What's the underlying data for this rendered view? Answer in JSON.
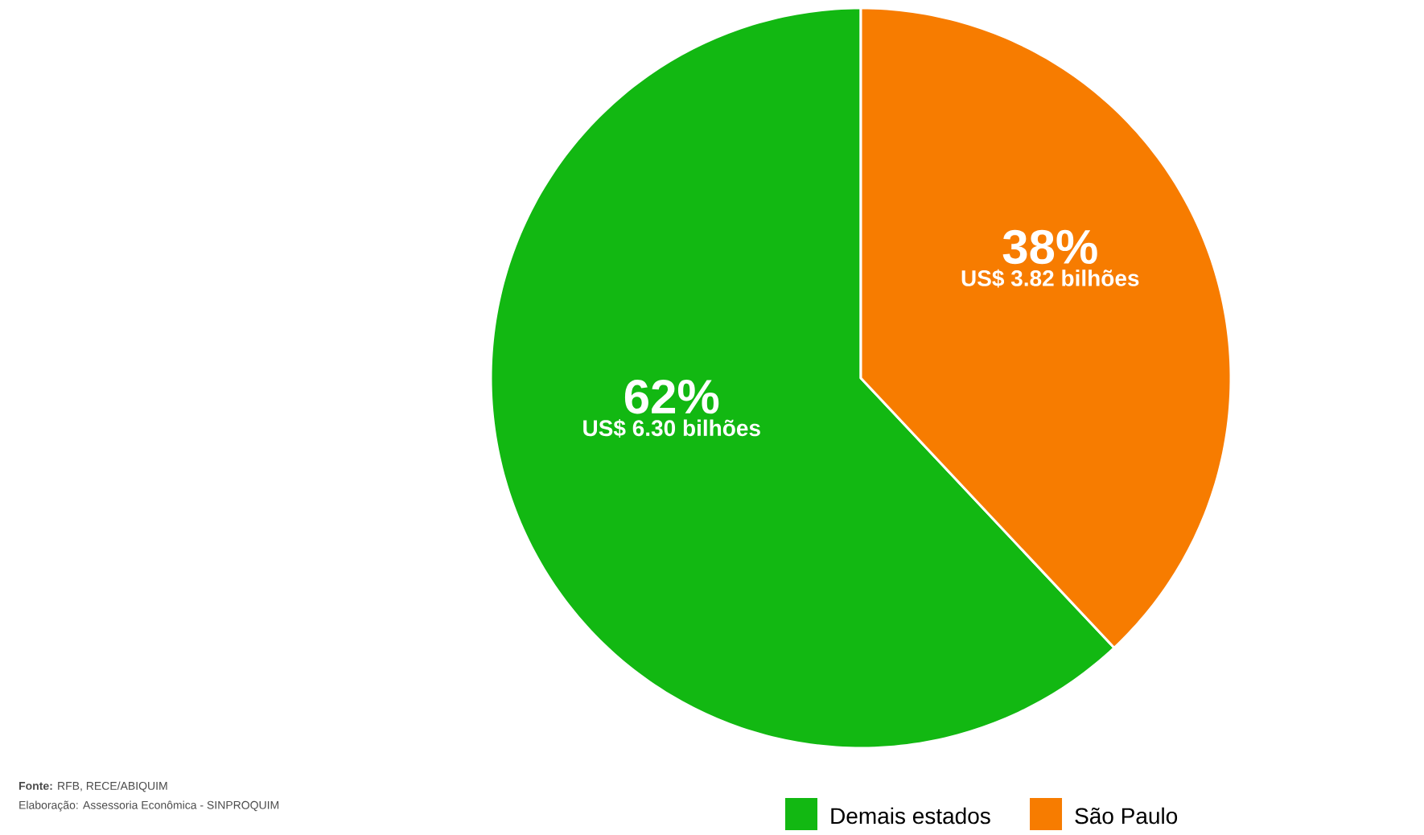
{
  "chart_data": {
    "type": "pie",
    "categories": [
      "Demais estados",
      "São Paulo"
    ],
    "values": [
      62,
      38
    ],
    "colors": [
      "#12b812",
      "#f77c00"
    ],
    "value_labels": [
      "62%",
      "38%"
    ],
    "legend": "bottom",
    "annotations": [
      {
        "text": "US$ 6.30 bilhões",
        "x": "Demais estados"
      },
      {
        "text": "US$ 3.82 bilhões",
        "x": "São Paulo"
      },
      "**Fonte:** RFB, RECE/ABIQUIM",
      "Elaboração: Assessoria Econômica - SINPROQUIM"
    ]
  }
}
